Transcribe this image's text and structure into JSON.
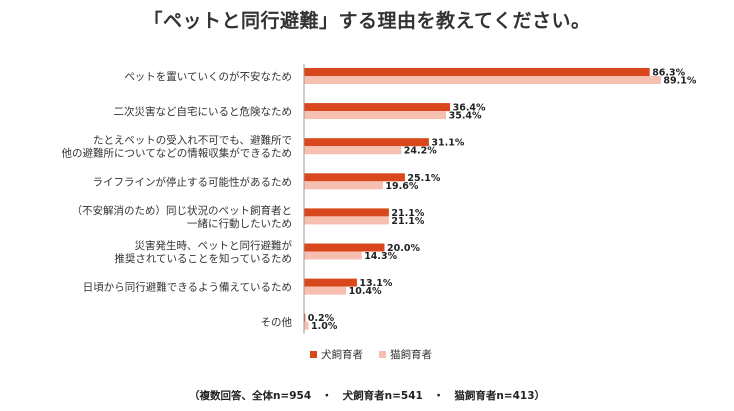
{
  "title": "「ペットと同行避難」する理由を教えてください。",
  "footnote": "（複数回答、全体n=954　・　犬飼育者n=541　・　猫飼育者n=413）",
  "colors": {
    "dog": "#d9481c",
    "cat": "#f7bfb0",
    "axis": "#999999"
  },
  "chart_data": {
    "type": "bar",
    "orientation": "horizontal",
    "categories": [
      [
        "ペットを置いていくのが不安なため"
      ],
      [
        "二次災害など自宅にいると危険なため"
      ],
      [
        "たとえペットの受入れ不可でも、避難所で",
        "他の避難所についてなどの情報収集ができるため"
      ],
      [
        "ライフラインが停止する可能性があるため"
      ],
      [
        "（不安解消のため）同じ状況のペット飼育者と",
        "一緒に行動したいため"
      ],
      [
        "災害発生時、ペットと同行避難が",
        "推奨されていることを知っているため"
      ],
      [
        "日頃から同行避難できるよう備えているため"
      ],
      [
        "その他"
      ]
    ],
    "series": [
      {
        "name": "犬飼育者",
        "values": [
          86.3,
          36.4,
          31.1,
          25.1,
          21.1,
          20.0,
          13.1,
          0.2
        ],
        "labels": [
          "86.3%",
          "36.4%",
          "31.1%",
          "25.1%",
          "21.1%",
          "20.0%",
          "13.1%",
          "0.2%"
        ]
      },
      {
        "name": "猫飼育者",
        "values": [
          89.1,
          35.4,
          24.2,
          19.6,
          21.1,
          14.3,
          10.4,
          1.0
        ],
        "labels": [
          "89.1%",
          "35.4%",
          "24.2%",
          "19.6%",
          "21.1%",
          "14.3%",
          "10.4%",
          "1.0%"
        ]
      }
    ],
    "xlim": [
      0,
      100
    ],
    "legend": "bottom"
  }
}
